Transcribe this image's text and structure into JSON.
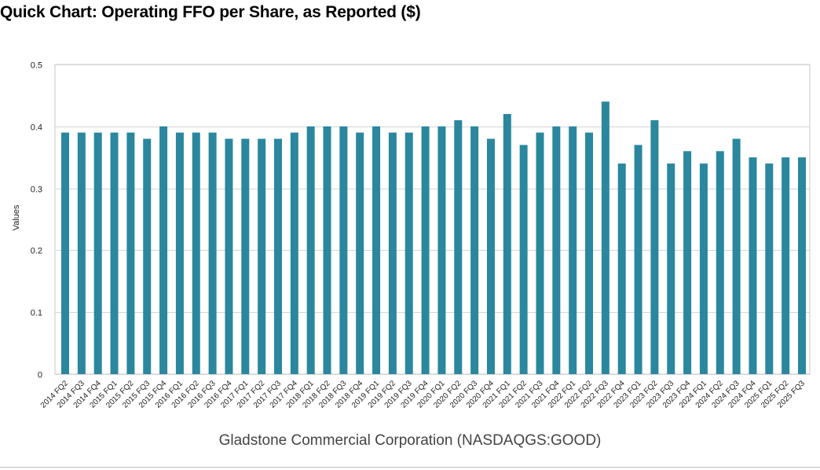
{
  "title": "Quick Chart: Operating FFO per Share, as Reported ($)",
  "caption": "Gladstone Commercial Corporation (NASDAQGS:GOOD)",
  "colors": {
    "bar": "#2a879e",
    "grid": "#d4d4d4",
    "axis_text": "#222222",
    "frame": "#c8c8c8"
  },
  "chart_data": {
    "type": "bar",
    "title": "Quick Chart: Operating FFO per Share, as Reported ($)",
    "xlabel": "",
    "ylabel": "Values",
    "ylim": [
      0,
      0.5
    ],
    "yticks": [
      0,
      0.1,
      0.2,
      0.3,
      0.4,
      0.5
    ],
    "ytick_labels": [
      "0",
      "0.1",
      "0.2",
      "0.3",
      "0.4",
      "0.5"
    ],
    "grid": true,
    "legend": "none",
    "categories": [
      "2014 FQ2",
      "2014 FQ3",
      "2014 FQ4",
      "2015 FQ1",
      "2015 FQ2",
      "2015 FQ3",
      "2015 FQ4",
      "2016 FQ1",
      "2016 FQ2",
      "2016 FQ3",
      "2016 FQ4",
      "2017 FQ1",
      "2017 FQ2",
      "2017 FQ3",
      "2017 FQ4",
      "2018 FQ1",
      "2018 FQ2",
      "2018 FQ3",
      "2018 FQ4",
      "2019 FQ1",
      "2019 FQ2",
      "2019 FQ3",
      "2019 FQ4",
      "2020 FQ1",
      "2020 FQ2",
      "2020 FQ3",
      "2020 FQ4",
      "2021 FQ1",
      "2021 FQ2",
      "2021 FQ3",
      "2021 FQ4",
      "2022 FQ1",
      "2022 FQ2",
      "2022 FQ3",
      "2022 FQ4",
      "2023 FQ1",
      "2023 FQ2",
      "2023 FQ3",
      "2023 FQ4",
      "2024 FQ1",
      "2024 FQ2",
      "2024 FQ3",
      "2024 FQ4",
      "2025 FQ1",
      "2025 FQ2",
      "2025 FQ3"
    ],
    "values": [
      0.39,
      0.39,
      0.39,
      0.39,
      0.39,
      0.38,
      0.4,
      0.39,
      0.39,
      0.39,
      0.38,
      0.38,
      0.38,
      0.38,
      0.39,
      0.4,
      0.4,
      0.4,
      0.39,
      0.4,
      0.39,
      0.39,
      0.4,
      0.4,
      0.41,
      0.4,
      0.38,
      0.42,
      0.37,
      0.39,
      0.4,
      0.4,
      0.39,
      0.44,
      0.34,
      0.37,
      0.41,
      0.34,
      0.36,
      0.34,
      0.36,
      0.38,
      0.35,
      0.34,
      0.35,
      0.35
    ]
  }
}
